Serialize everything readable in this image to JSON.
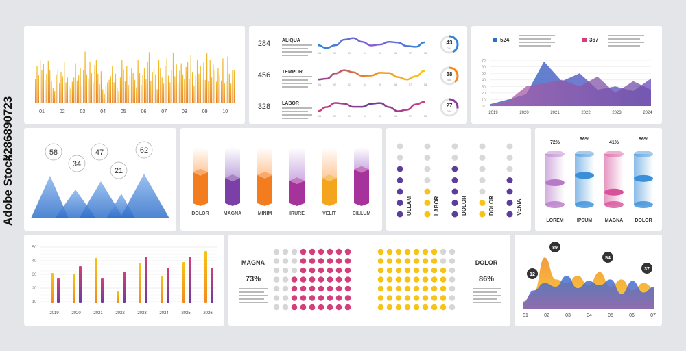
{
  "watermark": {
    "brand": "Adobe Stock",
    "id": "#286890723"
  },
  "colors": {
    "orange": "#f28a1d",
    "yellow": "#f6c419",
    "purple": "#6b3c9e",
    "pink": "#d23f7a",
    "blue": "#2f86d6",
    "lightblue": "#8bc4ef",
    "grey": "#d6d6d6",
    "text": "#333333"
  },
  "panel1": {
    "chart_data": {
      "type": "bar",
      "x_labels": [
        "01",
        "02",
        "03",
        "04",
        "05",
        "06",
        "07",
        "08",
        "09",
        "10"
      ],
      "values": [
        40,
        60,
        46,
        71,
        54,
        64,
        38,
        48,
        69,
        54,
        36,
        25,
        20,
        47,
        55,
        33,
        51,
        44,
        67,
        34,
        42,
        28,
        24,
        35,
        42,
        65,
        37,
        46,
        57,
        29,
        54,
        84,
        47,
        39,
        68,
        50,
        34,
        62,
        71,
        48,
        31,
        52,
        23,
        15,
        29,
        34,
        38,
        44,
        61,
        34,
        48,
        26,
        20,
        42,
        71,
        55,
        36,
        61,
        30,
        44,
        57,
        50,
        38,
        26,
        71,
        49,
        30,
        46,
        57,
        40,
        68,
        83,
        36,
        51,
        57,
        47,
        23,
        70,
        57,
        42,
        32,
        60,
        73,
        45,
        34,
        54,
        82,
        44,
        63,
        33,
        53,
        65,
        47,
        40,
        59,
        67,
        39,
        78,
        51,
        29,
        46,
        71,
        48,
        61,
        38,
        66,
        38,
        81,
        36,
        71,
        42,
        63,
        54,
        35,
        57,
        46,
        37,
        73,
        33,
        37,
        76,
        48,
        32,
        54,
        54
      ]
    }
  },
  "panel2": {
    "rows": [
      {
        "value": "284",
        "title": "ALIQUA",
        "pct": "43",
        "pct_value": 43,
        "sub": "284",
        "color": "#2f86d6",
        "text": "LOREM IPSUM DOLOR SIT AMET CONSECTETUR ADIPISCING ELIT SED DO EIUSMOD"
      },
      {
        "value": "456",
        "title": "TEMPOR",
        "pct": "38",
        "pct_value": 38,
        "sub": "456",
        "color": "#f28a1d",
        "text": "LOREM IPSUM DOLOR SIT AMET VOLUPTATE VELIT ESSE CILLUM DOLORE EU FUGIAT"
      },
      {
        "value": "328",
        "title": "LABOR",
        "pct": "27",
        "pct_value": 27,
        "sub": "328",
        "color": "#8c3a9e",
        "text": "LOREM IPSUM DOLOR SIT AMET CONSECTETUR ADIPISCING ELIT SED DO EIUSMOD"
      }
    ],
    "ticks": [
      "01",
      "02",
      "03",
      "04",
      "05",
      "06",
      "07",
      "08"
    ]
  },
  "panel3": {
    "chart_data": {
      "type": "area",
      "x_labels": [
        "2019",
        "2020",
        "2021",
        "2022",
        "2023",
        "2024"
      ],
      "y_ticks": [
        "70",
        "60",
        "50",
        "40",
        "30",
        "20",
        "10",
        "0"
      ],
      "ylim": [
        0,
        70
      ],
      "series": [
        {
          "color": "#2f6fc9",
          "values": [
            3,
            10,
            18,
            68,
            38,
            50,
            25,
            30,
            23,
            42
          ]
        },
        {
          "color": "#c25a9e",
          "values": [
            2,
            8,
            30,
            35,
            40,
            30,
            45,
            20,
            38,
            25
          ]
        }
      ]
    },
    "legend": [
      {
        "value": "524",
        "color": "#2f6fc9",
        "text": "LOREM IPSUM DOLOR SIT AMET CONSECTETUR ADIPISCING ELIT SED DO EIUSMOD TEMPOR"
      },
      {
        "value": "367",
        "color": "#d23f7a",
        "text": "LOREM IPSUM DOLOR SIT AMET CONSECTETUR ADIPISCING ELIT SED DO EIUSMOD TEMPOR"
      }
    ]
  },
  "panel4": {
    "bubbles": [
      {
        "label": "58"
      },
      {
        "label": "34"
      },
      {
        "label": "47"
      },
      {
        "label": "21"
      },
      {
        "label": "62"
      }
    ]
  },
  "panel5": {
    "labels": [
      "DOLOR",
      "MAGNA",
      "MINIM",
      "IRURE",
      "VELIT",
      "CILLUM"
    ],
    "fill": [
      0.55,
      0.45,
      0.5,
      0.4,
      0.45,
      0.6
    ],
    "top": [
      "#ffc08e",
      "#b79ad8",
      "#ffc08e",
      "#c4a0de",
      "#ffc08e",
      "#c4a0de"
    ],
    "bottom": [
      "#f37d1e",
      "#7b3fa8",
      "#f37d1e",
      "#a6339b",
      "#f5a51d",
      "#a6339b"
    ]
  },
  "panel6": {
    "labels": [
      "ULLAM",
      "LABOR",
      "DOLOR",
      "DOLOR",
      "VENIA"
    ],
    "fill": [
      5,
      3,
      5,
      2,
      4
    ],
    "color": [
      "#5c3d9c",
      "#f6c419",
      "#5c3d9c",
      "#f6c419",
      "#5c3d9c"
    ]
  },
  "panel7": {
    "labels": [
      "LOREM",
      "IPSUM",
      "MAGNA",
      "DOLOR"
    ],
    "pct": [
      "72%",
      "96%",
      "41%",
      "86%"
    ],
    "values": [
      72,
      96,
      41,
      86
    ],
    "color": [
      "#b67ac8",
      "#3a8fd8",
      "#d6539a",
      "#3a8fd8"
    ]
  },
  "panel8": {
    "chart_data": {
      "type": "bar",
      "x_labels": [
        "2019",
        "2020",
        "2021",
        "2022",
        "2023",
        "2024",
        "2025",
        "2026"
      ],
      "y_ticks": [
        "50",
        "40",
        "30",
        "20",
        "10"
      ],
      "ylim": [
        10,
        50
      ],
      "series": [
        {
          "values": [
            31,
            30,
            42,
            18,
            38,
            29,
            39,
            47
          ],
          "color": "#f28a1d"
        },
        {
          "values": [
            27,
            36,
            27,
            32,
            43,
            35,
            43,
            35
          ],
          "color": "#8c3a9e"
        }
      ]
    }
  },
  "panel9": {
    "left": {
      "title": "MAGNA",
      "pct": "73%",
      "value": 73,
      "color": "#d23f7a"
    },
    "right": {
      "title": "DOLOR",
      "pct": "86%",
      "value": 86,
      "color": "#f6c419"
    },
    "text": "LOREM IPSUM DOLOR SIT AMET CONSECTETUR ADIPISCING ELIT SED DO EIUSMOD TEMPOR INCIDIDUNT"
  },
  "panel10": {
    "chart_data": {
      "type": "area",
      "x_labels": [
        "01",
        "02",
        "03",
        "04",
        "05",
        "06",
        "07"
      ],
      "series": [
        {
          "color": "#f28a1d",
          "values": [
            10,
            22,
            70,
            40,
            35,
            45,
            32,
            50,
            30,
            40,
            25,
            35,
            28
          ]
        },
        {
          "color": "#3a72d0",
          "values": [
            8,
            25,
            35,
            30,
            45,
            28,
            38,
            32,
            40,
            20,
            38,
            22,
            30
          ]
        }
      ]
    },
    "bubbles": [
      {
        "label": "12"
      },
      {
        "label": "89"
      },
      {
        "label": "54"
      },
      {
        "label": "37"
      }
    ]
  }
}
